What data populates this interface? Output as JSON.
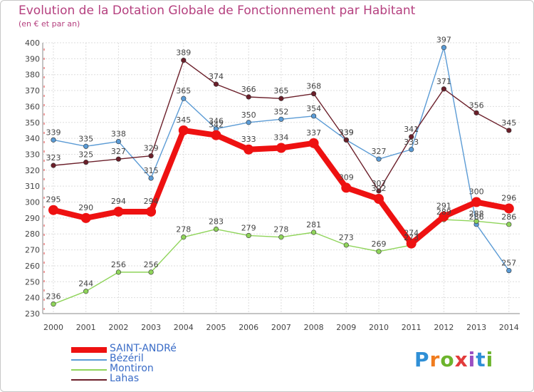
{
  "title": "Evolution de la Dotation Globale de Fonctionnement par Habitant",
  "subtitle": "(en € et par an)",
  "logo": {
    "text": "Proxiti",
    "letter_colors": [
      "#2f8fd6",
      "#f07c1e",
      "#6cb42c",
      "#e23b3b",
      "#9a4fc2",
      "#2f8fd6",
      "#6cb42c"
    ]
  },
  "chart_data": {
    "type": "line",
    "title": "Evolution de la Dotation Globale de Fonctionnement par Habitant",
    "subtitle": "(en € et par an)",
    "xlabel": "",
    "ylabel": "",
    "ylim": [
      230,
      400
    ],
    "yticks": [
      230,
      240,
      250,
      260,
      270,
      280,
      290,
      300,
      310,
      320,
      330,
      340,
      350,
      360,
      370,
      380,
      390,
      400
    ],
    "grid": true,
    "legend_position": "bottom-left",
    "x": [
      "2000",
      "2001",
      "2002",
      "2003",
      "2004",
      "2005",
      "2006",
      "2007",
      "2008",
      "2009",
      "2010",
      "2011",
      "2012",
      "2013",
      "2014"
    ],
    "series": [
      {
        "name": "Bézéril",
        "color": "#5b9bd5",
        "values": [
          339,
          335,
          338,
          315,
          365,
          346,
          350,
          352,
          354,
          339,
          327,
          333,
          397,
          286,
          257
        ]
      },
      {
        "name": "Montiron",
        "color": "#8fd45a",
        "values": [
          236,
          244,
          256,
          256,
          278,
          283,
          279,
          278,
          281,
          273,
          269,
          273,
          289,
          288,
          286
        ]
      },
      {
        "name": "Lahas",
        "color": "#6b1f2a",
        "values": [
          323,
          325,
          327,
          329,
          389,
          374,
          366,
          365,
          368,
          339,
          307,
          341,
          371,
          356,
          345
        ]
      },
      {
        "name": "SAINT-ANDRé",
        "color": "#ee1111",
        "values": [
          295,
          290,
          294,
          294,
          345,
          342,
          333,
          334,
          337,
          309,
          302,
          274,
          291,
          300,
          296
        ]
      }
    ],
    "legend_order": [
      "SAINT-ANDRé",
      "Bézéril",
      "Montiron",
      "Lahas"
    ]
  }
}
